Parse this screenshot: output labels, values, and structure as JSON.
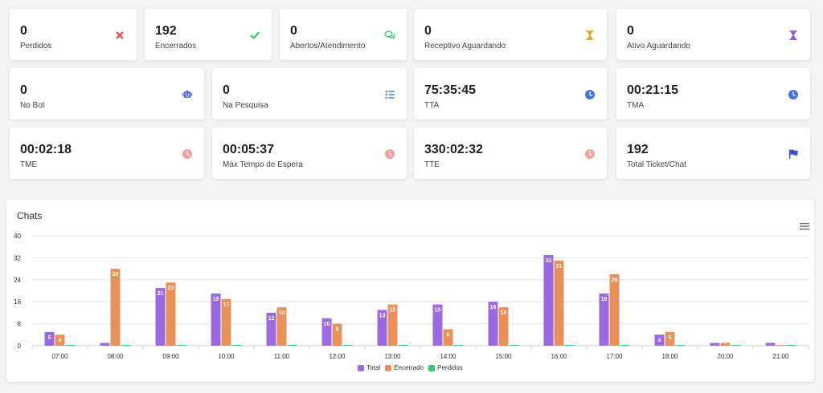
{
  "cards": [
    {
      "value": "0",
      "label": "Perdidos",
      "icon": "close-icon",
      "color": "#e74c3c"
    },
    {
      "value": "192",
      "label": "Encerrados",
      "icon": "check-icon",
      "color": "#2ecc71"
    },
    {
      "value": "0",
      "label": "Abertos/Atendimento",
      "icon": "chat-icon",
      "color": "#2ecc71"
    },
    {
      "value": "0",
      "label": "Receptivo Aguardando",
      "icon": "hourglass-icon",
      "color": "#e0a82e"
    },
    {
      "value": "0",
      "label": "Ativo Aguardando",
      "icon": "hourglass-icon",
      "color": "#9b59d6"
    },
    {
      "value": "0",
      "label": "No Bot",
      "icon": "robot-icon",
      "color": "#4a72d9"
    },
    {
      "value": "0",
      "label": "Na Pesquisa",
      "icon": "checklist-icon",
      "color": "#4a72d9"
    },
    {
      "value": "75:35:45",
      "label": "TTA",
      "icon": "clock-icon",
      "color": "#4a72d9"
    },
    {
      "value": "00:21:15",
      "label": "TMA",
      "icon": "clock-icon",
      "color": "#4a72d9"
    },
    {
      "value": "00:02:18",
      "label": "TME",
      "icon": "clock-icon",
      "color": "#f4a0a0"
    },
    {
      "value": "00:05:37",
      "label": "Máx Tempo de Espera",
      "icon": "clock-icon",
      "color": "#f4a0a0"
    },
    {
      "value": "330:02:32",
      "label": "TTE",
      "icon": "clock-icon",
      "color": "#f4a0a0"
    },
    {
      "value": "192",
      "label": "Total Ticket/Chat",
      "icon": "flag-icon",
      "color": "#3b4fd0"
    }
  ],
  "chart_data": {
    "type": "bar",
    "title": "Chats",
    "categories": [
      "07:00",
      "08:00",
      "09:00",
      "10:00",
      "11:00",
      "12:00",
      "13:00",
      "14:00",
      "15:00",
      "16:00",
      "17:00",
      "18:00",
      "20:00",
      "21:00"
    ],
    "series": [
      {
        "name": "Total",
        "color": "#9b6ae0",
        "values": [
          5,
          1,
          21,
          19,
          12,
          10,
          13,
          15,
          16,
          33,
          19,
          4,
          1,
          1
        ]
      },
      {
        "name": "Encerrado",
        "color": "#e8915a",
        "values": [
          4,
          28,
          23,
          17,
          14,
          8,
          15,
          6,
          14,
          31,
          26,
          5,
          1,
          0
        ]
      },
      {
        "name": "Perdidos",
        "color": "#2ecc71",
        "values": [
          0,
          0,
          0,
          0,
          0,
          0,
          0,
          0,
          0,
          0,
          0,
          0,
          0,
          0
        ]
      }
    ],
    "ylim": [
      0,
      40
    ],
    "yticks": [
      0,
      8,
      16,
      24,
      32,
      40
    ],
    "grid": true,
    "legend": "bottom"
  }
}
